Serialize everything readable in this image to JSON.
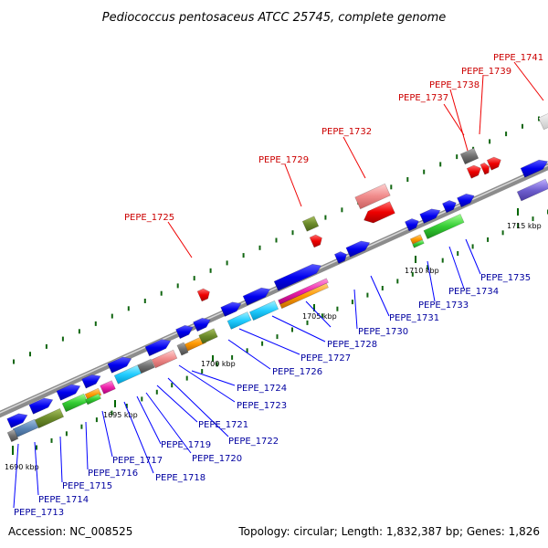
{
  "title": "Pediococcus pentosaceus ATCC 25745, complete genome",
  "accession": "Accession: NC_008525",
  "topology": "Topology: circular; Length: 1,832,387 bp; Genes: 1,826",
  "colors": {
    "backbone": "#909090",
    "blue": "#0000ee",
    "red": "#ee0000",
    "tick": "#006600",
    "leader_blue": "#0000ff",
    "leader_red": "#ee0000"
  },
  "kbp_marks": [
    {
      "label": "1690 kbp"
    },
    {
      "label": "1695 kbp"
    },
    {
      "label": "1700 kbp"
    },
    {
      "label": "1705 kbp"
    },
    {
      "label": "1710 kbp"
    },
    {
      "label": "1715 kbp"
    }
  ],
  "blue_labels": [
    {
      "text": "PEPE_1713"
    },
    {
      "text": "PEPE_1714"
    },
    {
      "text": "PEPE_1715"
    },
    {
      "text": "PEPE_1716"
    },
    {
      "text": "PEPE_1717"
    },
    {
      "text": "PEPE_1718"
    },
    {
      "text": "PEPE_1719"
    },
    {
      "text": "PEPE_1720"
    },
    {
      "text": "PEPE_1721"
    },
    {
      "text": "PEPE_1722"
    },
    {
      "text": "PEPE_1723"
    },
    {
      "text": "PEPE_1724"
    },
    {
      "text": "PEPE_1726"
    },
    {
      "text": "PEPE_1727"
    },
    {
      "text": "PEPE_1728"
    },
    {
      "text": "PEPE_1730"
    },
    {
      "text": "PEPE_1731"
    },
    {
      "text": "PEPE_1733"
    },
    {
      "text": "PEPE_1734"
    },
    {
      "text": "PEPE_1735"
    }
  ],
  "red_labels": [
    {
      "text": "PEPE_1725"
    },
    {
      "text": "PEPE_1729"
    },
    {
      "text": "PEPE_1732"
    },
    {
      "text": "PEPE_1737"
    },
    {
      "text": "PEPE_1738"
    },
    {
      "text": "PEPE_1739"
    },
    {
      "text": "PEPE_1741"
    }
  ]
}
